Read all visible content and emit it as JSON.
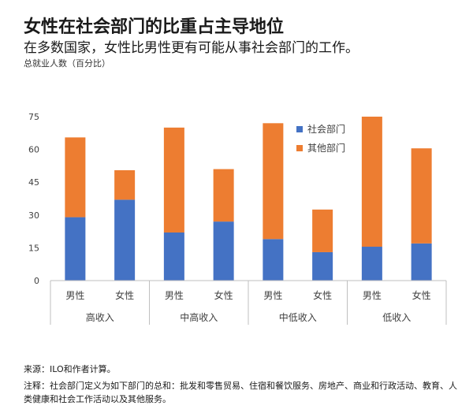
{
  "title": "女性在社会部门的比重占主导地位",
  "subtitle": "在多数国家，女性比男性更有可能从事社会部门的工作。",
  "unit_label": "总就业人数（百分比）",
  "source": "来源：ILO和作者计算。",
  "note": "注释：社会部门定义为如下部门的总和：批发和零售贸易、住宿和餐饮服务、房地产、商业和行政活动、教育、人类健康和社会工作活动以及其他服务。",
  "colors": {
    "social": "#4472c4",
    "other": "#ed7d31"
  },
  "chart_data": {
    "type": "bar",
    "stacked": true,
    "yticks": [
      0,
      15,
      30,
      45,
      60,
      75
    ],
    "ylim": [
      0,
      75
    ],
    "groups": [
      {
        "label": "高收入",
        "bars": [
          {
            "label": "男性",
            "values": [
              29,
              36.5
            ]
          },
          {
            "label": "女性",
            "values": [
              37,
              13.5
            ]
          }
        ]
      },
      {
        "label": "中高收入",
        "bars": [
          {
            "label": "男性",
            "values": [
              22,
              48
            ]
          },
          {
            "label": "女性",
            "values": [
              27,
              24
            ]
          }
        ]
      },
      {
        "label": "中低收入",
        "bars": [
          {
            "label": "男性",
            "values": [
              19,
              53
            ]
          },
          {
            "label": "女性",
            "values": [
              13,
              19.5
            ]
          }
        ]
      },
      {
        "label": "低收入",
        "bars": [
          {
            "label": "男性",
            "values": [
              15.5,
              59.5
            ]
          },
          {
            "label": "女性",
            "values": [
              17,
              43.5
            ]
          }
        ]
      }
    ],
    "series": [
      {
        "name": "社会部门"
      },
      {
        "name": "其他部门"
      }
    ],
    "legend_position": "top-right",
    "grid": false
  }
}
